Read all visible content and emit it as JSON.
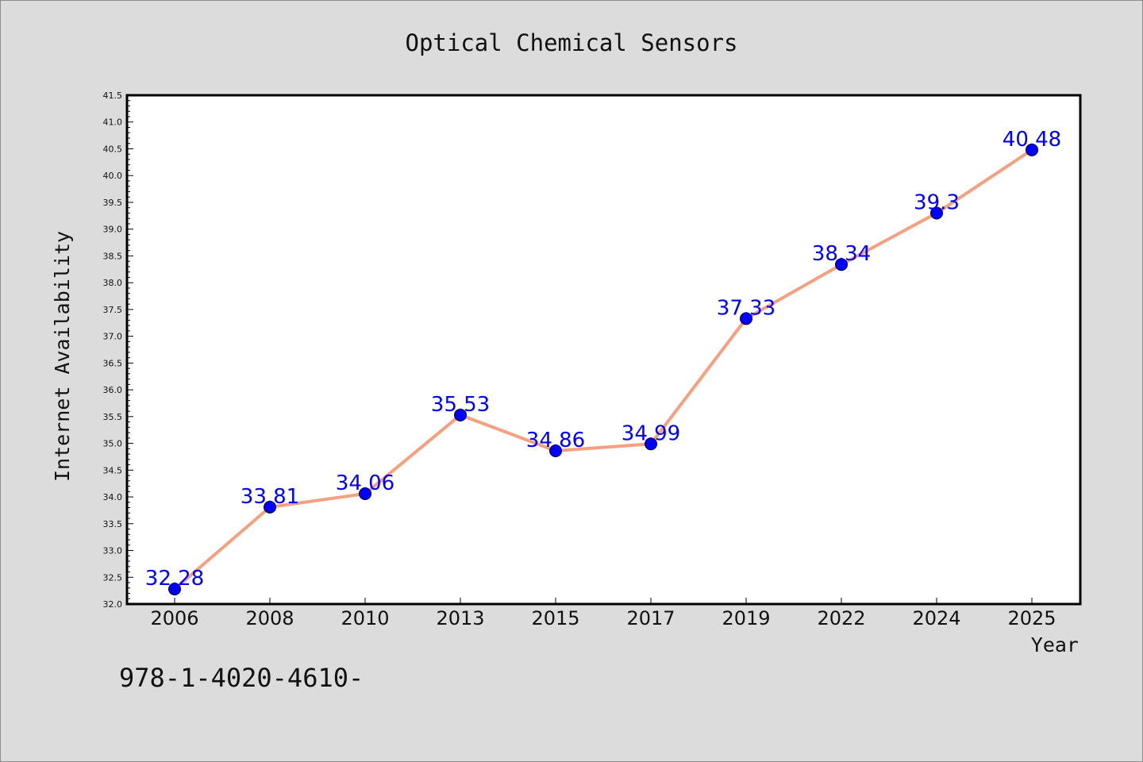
{
  "chart_data": {
    "type": "line",
    "title": "Optical Chemical Sensors",
    "xlabel": "Year",
    "ylabel": "Internet Availability",
    "categories": [
      "2006",
      "2008",
      "2010",
      "2013",
      "2015",
      "2017",
      "2019",
      "2022",
      "2024",
      "2025"
    ],
    "values": [
      32.28,
      33.81,
      34.06,
      35.53,
      34.86,
      34.99,
      37.33,
      38.34,
      39.3,
      40.48
    ],
    "data_labels": [
      "32.28",
      "33.81",
      "34.06",
      "35.53",
      "34.86",
      "34.99",
      "37.33",
      "38.34",
      "39.3",
      "40.48"
    ],
    "ylim": [
      32.0,
      41.5
    ],
    "yticks": [
      "32.0",
      "32.5",
      "33.0",
      "33.5",
      "34.0",
      "34.5",
      "35.0",
      "35.5",
      "36.0",
      "36.5",
      "37.0",
      "37.5",
      "38.0",
      "38.5",
      "39.0",
      "39.5",
      "40.0",
      "40.5",
      "41.0",
      "41.5"
    ],
    "grid": false,
    "legend": "none",
    "line_color": "#f5a07e",
    "marker_color": "#0000ff",
    "label_color": "#0000ff"
  },
  "footer": {
    "text": "978-1-4020-4610-"
  }
}
